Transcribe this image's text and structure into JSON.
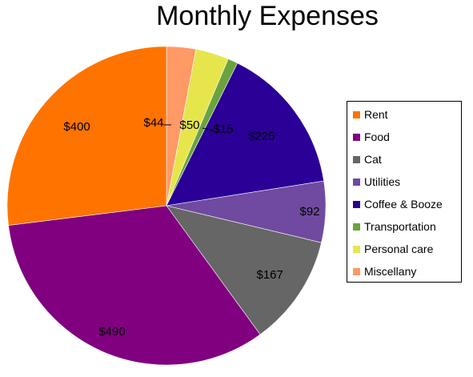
{
  "chart_data": {
    "type": "pie",
    "title": "Monthly Expenses",
    "legend_position": "right",
    "slices": [
      {
        "name": "Rent",
        "value": 400,
        "label": "$400",
        "color": "#ff7300"
      },
      {
        "name": "Food",
        "value": 490,
        "label": "$490",
        "color": "#800080"
      },
      {
        "name": "Cat",
        "value": 167,
        "label": "$167",
        "color": "#666666"
      },
      {
        "name": "Utilities",
        "value": 92,
        "label": "$92",
        "color": "#704aa0"
      },
      {
        "name": "Coffee & Booze",
        "value": 225,
        "label": "$225",
        "color": "#2a0096"
      },
      {
        "name": "Transportation",
        "value": 15,
        "label": "$15",
        "color": "#6aa33e"
      },
      {
        "name": "Personal care",
        "value": 50,
        "label": "$50",
        "color": "#e6e64c"
      },
      {
        "name": "Miscellany",
        "value": 44,
        "label": "$44",
        "color": "#ff9966"
      }
    ]
  }
}
